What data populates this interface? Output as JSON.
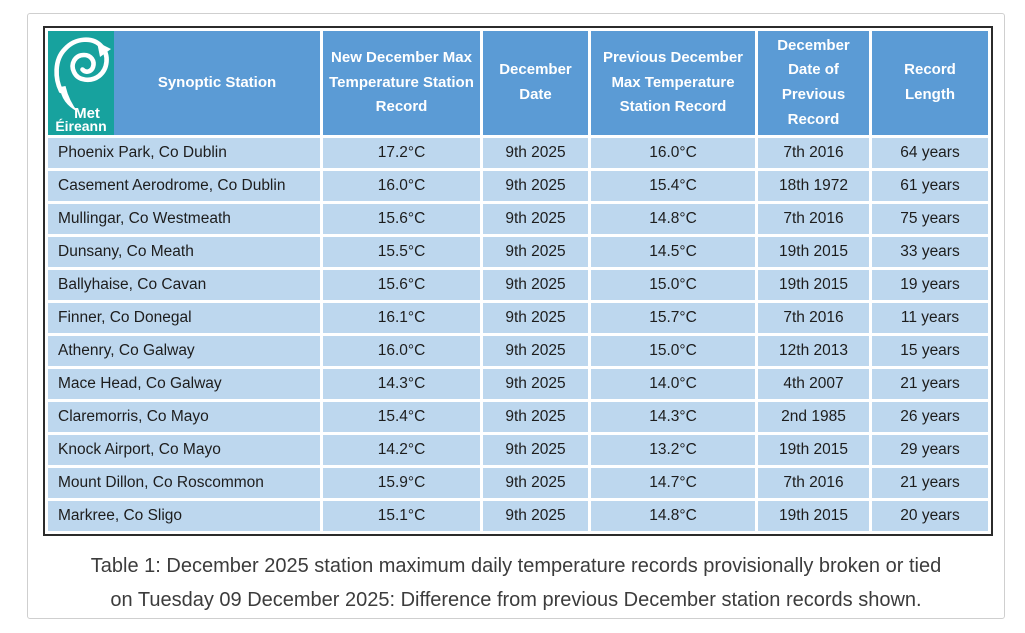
{
  "logo": {
    "line1": "Met",
    "line2": "Éireann"
  },
  "table": {
    "col_keys": [
      "station",
      "new_record",
      "december_date",
      "previous_record",
      "previous_record_date",
      "record_length"
    ],
    "headers": [
      "Synoptic Station",
      "New December Max Temperature Station Record",
      "December Date",
      "Previous December Max Temperature Station Record",
      "December Date of Previous Record",
      "Record Length"
    ],
    "rows": [
      [
        "Phoenix Park, Co Dublin",
        "17.2°C",
        "9th 2025",
        "16.0°C",
        "7th 2016",
        "64 years"
      ],
      [
        "Casement Aerodrome, Co Dublin",
        "16.0°C",
        "9th 2025",
        "15.4°C",
        "18th 1972",
        "61 years"
      ],
      [
        "Mullingar, Co Westmeath",
        "15.6°C",
        "9th 2025",
        "14.8°C",
        "7th 2016",
        "75 years"
      ],
      [
        "Dunsany, Co Meath",
        "15.5°C",
        "9th 2025",
        "14.5°C",
        "19th 2015",
        "33 years"
      ],
      [
        "Ballyhaise, Co Cavan",
        "15.6°C",
        "9th 2025",
        "15.0°C",
        "19th 2015",
        "19 years"
      ],
      [
        "Finner, Co Donegal",
        "16.1°C",
        "9th 2025",
        "15.7°C",
        "7th 2016",
        "11 years"
      ],
      [
        "Athenry, Co Galway",
        "16.0°C",
        "9th 2025",
        "15.0°C",
        "12th 2013",
        "15 years"
      ],
      [
        "Mace Head, Co Galway",
        "14.3°C",
        "9th 2025",
        "14.0°C",
        "4th 2007",
        "21 years"
      ],
      [
        "Claremorris, Co Mayo",
        "15.4°C",
        "9th 2025",
        "14.3°C",
        "2nd 1985",
        "26 years"
      ],
      [
        "Knock Airport, Co Mayo",
        "14.2°C",
        "9th 2025",
        "13.2°C",
        "19th 2015",
        "29 years"
      ],
      [
        "Mount Dillon, Co Roscommon",
        "15.9°C",
        "9th 2025",
        "14.7°C",
        "7th 2016",
        "21 years"
      ],
      [
        "Markree, Co Sligo",
        "15.1°C",
        "9th 2025",
        "14.8°C",
        "19th 2015",
        "20 years"
      ]
    ]
  },
  "caption": {
    "line1": "Table 1: December 2025 station maximum daily temperature records provisionally broken or tied",
    "line2": "on Tuesday 09 December 2025: Difference from previous December station records shown."
  },
  "colors": {
    "header_blue": "#5B9BD5",
    "row_light_blue": "#BDD7EE",
    "logo_teal": "#17A29E",
    "table_border_dark": "#2b2b2b",
    "outer_frame_border": "#cfcfcf",
    "caption_text": "#3c3c3c"
  }
}
